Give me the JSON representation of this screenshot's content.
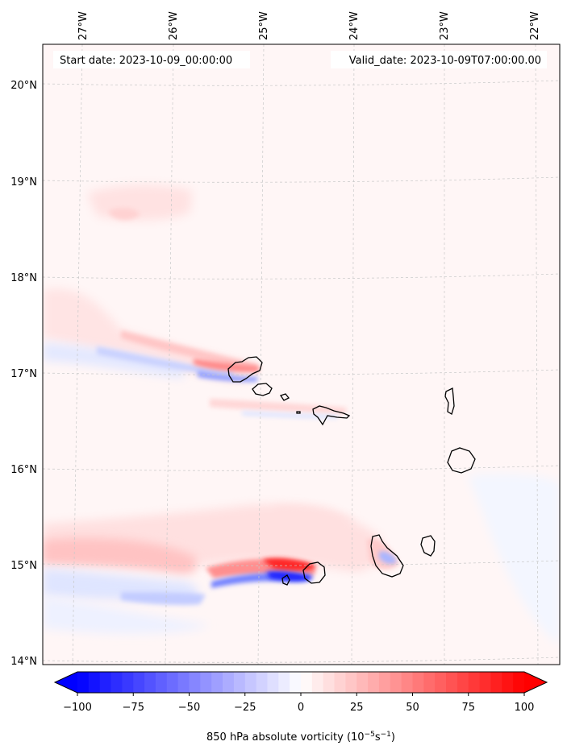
{
  "map": {
    "start_date": "Start date: 2023-10-09_00:00:00",
    "valid_date": "Valid_date: 2023-10-09T07:00:00.00",
    "lon_labels": [
      "27°W",
      "26°W",
      "25°W",
      "24°W",
      "23°W",
      "22°W"
    ],
    "lat_labels": [
      "20°N",
      "19°N",
      "18°N",
      "17°N",
      "16°N",
      "15°N",
      "14°N"
    ],
    "field": "850 hPa absolute vorticity",
    "grid": "dashed",
    "land": "Cape Verde islands outlined in black"
  },
  "colorbar": {
    "label_prefix": "850 hPa absolute vorticity (10",
    "label_exp1": "−5",
    "label_mid": "s",
    "label_exp2": "−1",
    "label_suffix": ")",
    "ticks": [
      "−100",
      "−75",
      "−50",
      "−25",
      "0",
      "25",
      "50",
      "75",
      "100"
    ],
    "min": -100,
    "max": 100,
    "extend": "both",
    "colors": {
      "negative": "#0000ff",
      "zero": "#ffffff",
      "positive": "#ff0000"
    }
  }
}
